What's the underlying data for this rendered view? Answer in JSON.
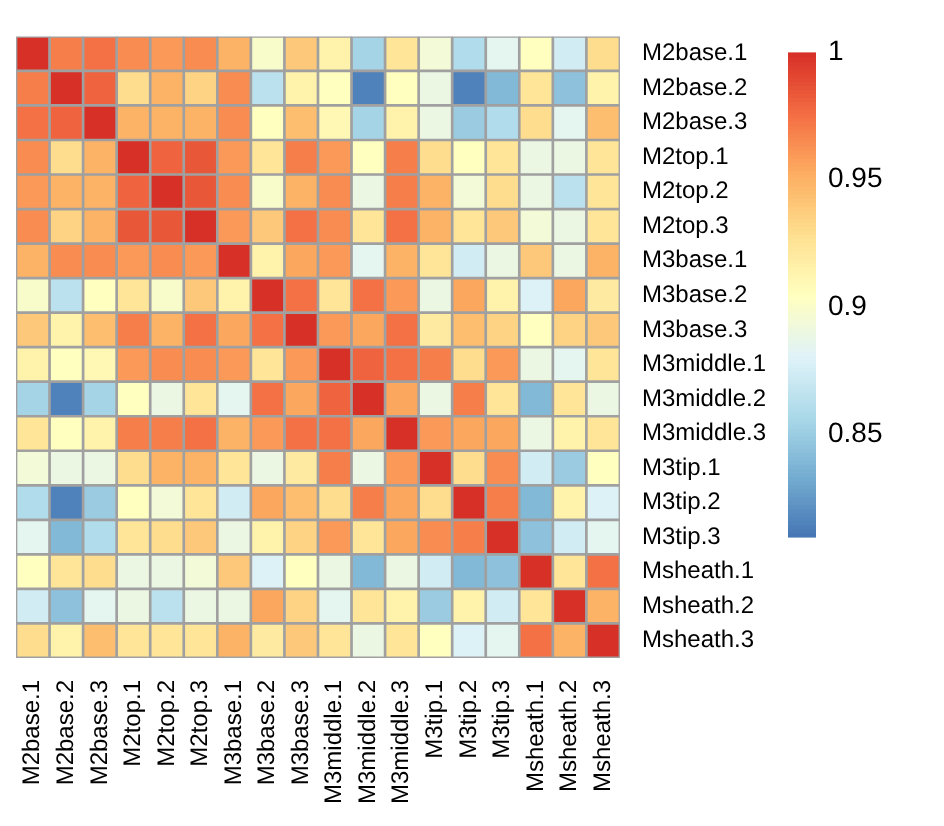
{
  "chart_data": {
    "type": "heatmap",
    "categories": [
      "M2base.1",
      "M2base.2",
      "M2base.3",
      "M2top.1",
      "M2top.2",
      "M2top.3",
      "M3base.1",
      "M3base.2",
      "M3base.3",
      "M3middle.1",
      "M3middle.2",
      "M3middle.3",
      "M3tip.1",
      "M3tip.2",
      "M3tip.3",
      "Msheath.1",
      "Msheath.2",
      "Msheath.3"
    ],
    "y_categories": [
      "M2base.1",
      "M2base.2",
      "M2base.3",
      "M2top.1",
      "M2top.2",
      "M2top.3",
      "M3base.1",
      "M3base.2",
      "M3base.3",
      "M3middle.1",
      "M3middle.2",
      "M3middle.3",
      "M3tip.1",
      "M3tip.2",
      "M3tip.3",
      "Msheath.1",
      "Msheath.2",
      "Msheath.3"
    ],
    "cells": [
      [
        1,
        0.97,
        0.975,
        0.965,
        0.96,
        0.965,
        0.95,
        0.9,
        0.94,
        0.915,
        0.855,
        0.925,
        0.895,
        0.86,
        0.885,
        0.905,
        0.875,
        0.93
      ],
      [
        0.97,
        1,
        0.98,
        0.93,
        0.95,
        0.935,
        0.965,
        0.865,
        0.915,
        0.905,
        0.815,
        0.905,
        0.89,
        0.815,
        0.84,
        0.925,
        0.845,
        0.915
      ],
      [
        0.975,
        0.98,
        1,
        0.95,
        0.95,
        0.95,
        0.965,
        0.905,
        0.945,
        0.91,
        0.855,
        0.915,
        0.89,
        0.85,
        0.86,
        0.93,
        0.885,
        0.945
      ],
      [
        0.965,
        0.93,
        0.95,
        1,
        0.98,
        0.985,
        0.96,
        0.925,
        0.97,
        0.96,
        0.905,
        0.97,
        0.93,
        0.905,
        0.925,
        0.89,
        0.89,
        0.925
      ],
      [
        0.96,
        0.95,
        0.95,
        0.98,
        1,
        0.985,
        0.965,
        0.9,
        0.95,
        0.965,
        0.89,
        0.97,
        0.95,
        0.895,
        0.93,
        0.89,
        0.865,
        0.925
      ],
      [
        0.965,
        0.935,
        0.95,
        0.985,
        0.985,
        1,
        0.96,
        0.94,
        0.975,
        0.965,
        0.925,
        0.975,
        0.95,
        0.925,
        0.94,
        0.895,
        0.89,
        0.925
      ],
      [
        0.95,
        0.965,
        0.965,
        0.96,
        0.965,
        0.96,
        1,
        0.915,
        0.955,
        0.96,
        0.885,
        0.95,
        0.925,
        0.875,
        0.89,
        0.94,
        0.89,
        0.95
      ],
      [
        0.9,
        0.865,
        0.905,
        0.925,
        0.9,
        0.94,
        0.915,
        1,
        0.975,
        0.925,
        0.975,
        0.96,
        0.89,
        0.955,
        0.915,
        0.88,
        0.955,
        0.92
      ],
      [
        0.94,
        0.915,
        0.945,
        0.97,
        0.95,
        0.975,
        0.955,
        0.975,
        1,
        0.96,
        0.955,
        0.975,
        0.92,
        0.945,
        0.935,
        0.905,
        0.935,
        0.94
      ],
      [
        0.915,
        0.905,
        0.91,
        0.96,
        0.965,
        0.965,
        0.96,
        0.925,
        0.96,
        1,
        0.98,
        0.975,
        0.97,
        0.93,
        0.96,
        0.89,
        0.885,
        0.925
      ],
      [
        0.855,
        0.815,
        0.855,
        0.905,
        0.89,
        0.925,
        0.885,
        0.975,
        0.955,
        0.98,
        1,
        0.955,
        0.89,
        0.97,
        0.925,
        0.84,
        0.925,
        0.89
      ],
      [
        0.925,
        0.905,
        0.915,
        0.97,
        0.97,
        0.975,
        0.95,
        0.96,
        0.975,
        0.975,
        0.955,
        1,
        0.96,
        0.955,
        0.955,
        0.89,
        0.915,
        0.925
      ],
      [
        0.895,
        0.89,
        0.89,
        0.93,
        0.95,
        0.95,
        0.925,
        0.89,
        0.92,
        0.97,
        0.89,
        0.96,
        1,
        0.93,
        0.965,
        0.875,
        0.85,
        0.905
      ],
      [
        0.86,
        0.815,
        0.85,
        0.905,
        0.895,
        0.925,
        0.875,
        0.955,
        0.945,
        0.93,
        0.97,
        0.955,
        0.93,
        1,
        0.97,
        0.84,
        0.915,
        0.88
      ],
      [
        0.885,
        0.84,
        0.86,
        0.925,
        0.93,
        0.94,
        0.89,
        0.915,
        0.935,
        0.96,
        0.925,
        0.955,
        0.965,
        0.97,
        1,
        0.845,
        0.875,
        0.885
      ],
      [
        0.905,
        0.925,
        0.93,
        0.89,
        0.89,
        0.895,
        0.94,
        0.88,
        0.905,
        0.89,
        0.84,
        0.89,
        0.875,
        0.84,
        0.845,
        1,
        0.925,
        0.975
      ],
      [
        0.875,
        0.845,
        0.885,
        0.89,
        0.865,
        0.89,
        0.89,
        0.955,
        0.935,
        0.885,
        0.925,
        0.915,
        0.85,
        0.915,
        0.875,
        0.925,
        1,
        0.95
      ],
      [
        0.93,
        0.915,
        0.945,
        0.925,
        0.925,
        0.925,
        0.95,
        0.92,
        0.94,
        0.925,
        0.89,
        0.925,
        0.905,
        0.88,
        0.885,
        0.975,
        0.95,
        1
      ]
    ],
    "clim": [
      0.81,
      1
    ],
    "cticks": [
      0.85,
      0.9,
      0.95,
      1
    ]
  }
}
